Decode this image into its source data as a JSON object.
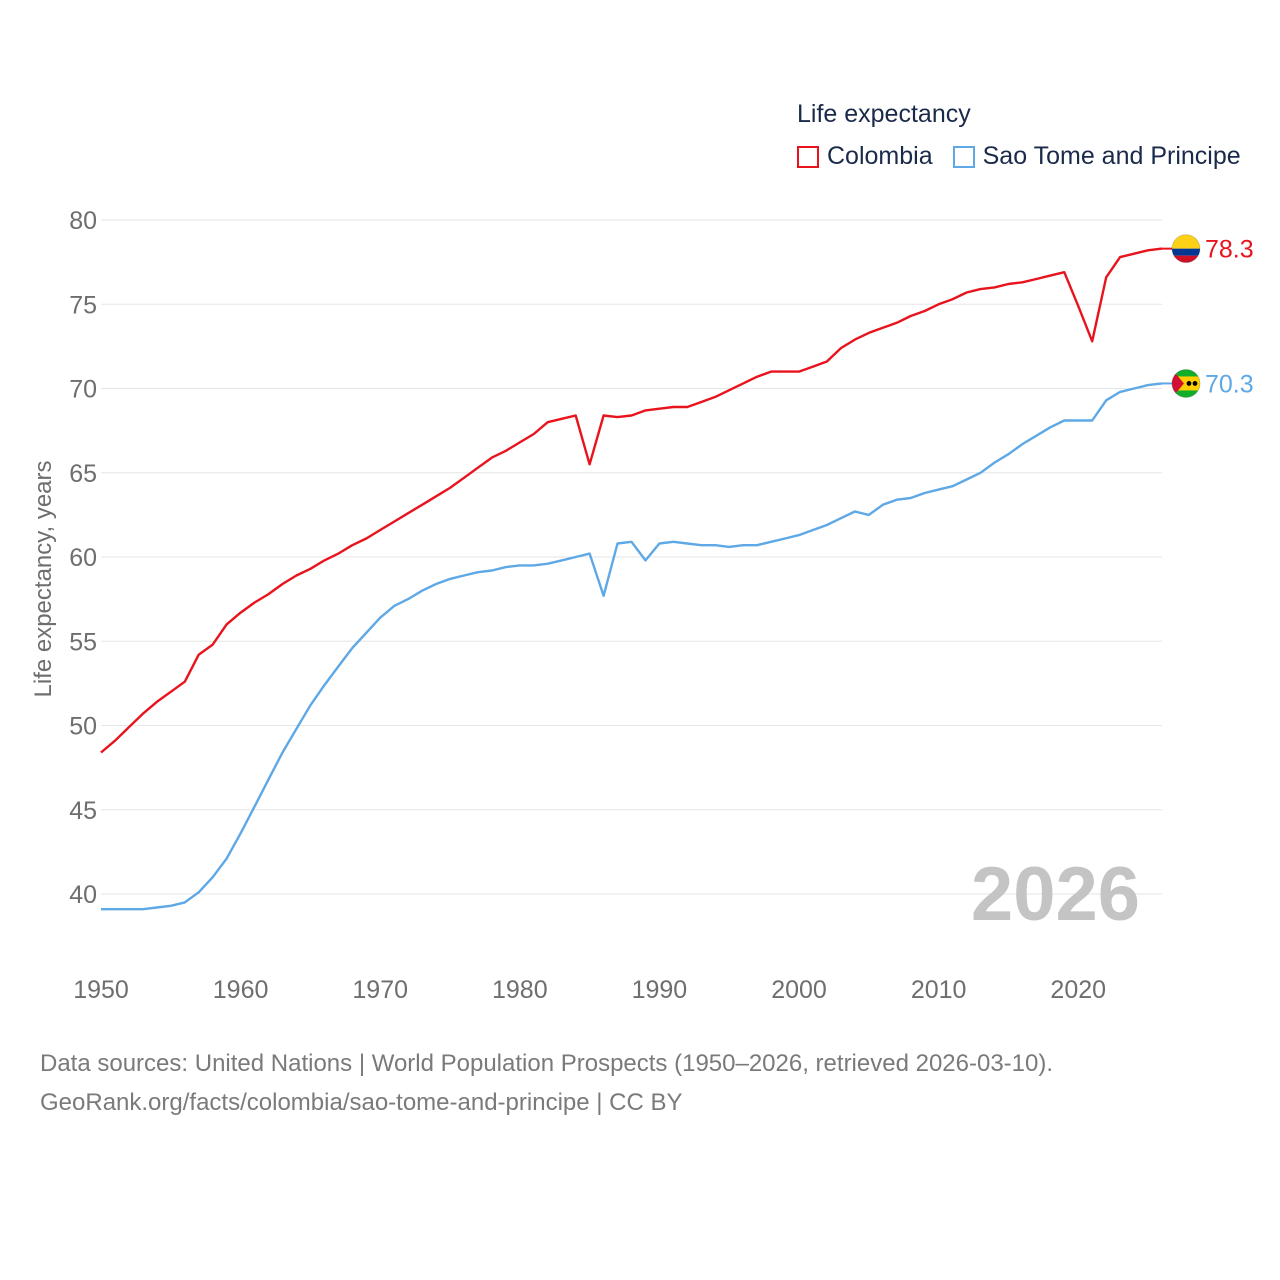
{
  "legend": {
    "title": "Life expectancy"
  },
  "colors": {
    "colombia": "#e8131c",
    "sao_tome": "#5ea8e6",
    "grid": "#e6e6e6",
    "tick_text": "#6e6e6e",
    "year_watermark": "#c4c4c4"
  },
  "year_label": "2026",
  "source": {
    "line1": "Data sources: United Nations | World Population Prospects (1950–2026, retrieved 2026-03-10).",
    "line2": "GeoRank.org/facts/colombia/sao-tome-and-principe | CC BY"
  },
  "chart_data": {
    "type": "line",
    "title": "Life expectancy",
    "xlabel": "",
    "ylabel": "Life expectancy, years",
    "xlim": [
      1950,
      2026
    ],
    "ylim": [
      37,
      80
    ],
    "x_ticks": [
      1950,
      1960,
      1970,
      1980,
      1990,
      2000,
      2010,
      2020
    ],
    "y_ticks": [
      40,
      45,
      50,
      55,
      60,
      65,
      70,
      75,
      80
    ],
    "grid": true,
    "legend_position": "top-right",
    "series": [
      {
        "key": "colombia",
        "name": "Colombia",
        "end_label": "78.3",
        "flag": "colombia-flag",
        "points": [
          [
            1950,
            48.4
          ],
          [
            1951,
            49.1
          ],
          [
            1952,
            49.9
          ],
          [
            1953,
            50.7
          ],
          [
            1954,
            51.4
          ],
          [
            1955,
            52.0
          ],
          [
            1956,
            52.6
          ],
          [
            1957,
            54.2
          ],
          [
            1958,
            54.8
          ],
          [
            1959,
            56.0
          ],
          [
            1960,
            56.7
          ],
          [
            1961,
            57.3
          ],
          [
            1962,
            57.8
          ],
          [
            1963,
            58.4
          ],
          [
            1964,
            58.9
          ],
          [
            1965,
            59.3
          ],
          [
            1966,
            59.8
          ],
          [
            1967,
            60.2
          ],
          [
            1968,
            60.7
          ],
          [
            1969,
            61.1
          ],
          [
            1970,
            61.6
          ],
          [
            1971,
            62.1
          ],
          [
            1972,
            62.6
          ],
          [
            1973,
            63.1
          ],
          [
            1974,
            63.6
          ],
          [
            1975,
            64.1
          ],
          [
            1976,
            64.7
          ],
          [
            1977,
            65.3
          ],
          [
            1978,
            65.9
          ],
          [
            1979,
            66.3
          ],
          [
            1980,
            66.8
          ],
          [
            1981,
            67.3
          ],
          [
            1982,
            68.0
          ],
          [
            1983,
            68.2
          ],
          [
            1984,
            68.4
          ],
          [
            1985,
            65.5
          ],
          [
            1986,
            68.4
          ],
          [
            1987,
            68.3
          ],
          [
            1988,
            68.4
          ],
          [
            1989,
            68.7
          ],
          [
            1990,
            68.8
          ],
          [
            1991,
            68.9
          ],
          [
            1992,
            68.9
          ],
          [
            1993,
            69.2
          ],
          [
            1994,
            69.5
          ],
          [
            1995,
            69.9
          ],
          [
            1996,
            70.3
          ],
          [
            1997,
            70.7
          ],
          [
            1998,
            71.0
          ],
          [
            1999,
            71.0
          ],
          [
            2000,
            71.0
          ],
          [
            2001,
            71.3
          ],
          [
            2002,
            71.6
          ],
          [
            2003,
            72.4
          ],
          [
            2004,
            72.9
          ],
          [
            2005,
            73.3
          ],
          [
            2006,
            73.6
          ],
          [
            2007,
            73.9
          ],
          [
            2008,
            74.3
          ],
          [
            2009,
            74.6
          ],
          [
            2010,
            75.0
          ],
          [
            2011,
            75.3
          ],
          [
            2012,
            75.7
          ],
          [
            2013,
            75.9
          ],
          [
            2014,
            76.0
          ],
          [
            2015,
            76.2
          ],
          [
            2016,
            76.3
          ],
          [
            2017,
            76.5
          ],
          [
            2018,
            76.7
          ],
          [
            2019,
            76.9
          ],
          [
            2020,
            74.9
          ],
          [
            2021,
            72.8
          ],
          [
            2022,
            76.6
          ],
          [
            2023,
            77.8
          ],
          [
            2024,
            78.0
          ],
          [
            2025,
            78.2
          ],
          [
            2026,
            78.3
          ]
        ]
      },
      {
        "key": "sao_tome",
        "name": "Sao Tome and Principe",
        "end_label": "70.3",
        "flag": "sao-tome-flag",
        "points": [
          [
            1950,
            39.1
          ],
          [
            1951,
            39.1
          ],
          [
            1952,
            39.1
          ],
          [
            1953,
            39.1
          ],
          [
            1954,
            39.2
          ],
          [
            1955,
            39.3
          ],
          [
            1956,
            39.5
          ],
          [
            1957,
            40.1
          ],
          [
            1958,
            41.0
          ],
          [
            1959,
            42.1
          ],
          [
            1960,
            43.6
          ],
          [
            1961,
            45.2
          ],
          [
            1962,
            46.8
          ],
          [
            1963,
            48.4
          ],
          [
            1964,
            49.8
          ],
          [
            1965,
            51.2
          ],
          [
            1966,
            52.4
          ],
          [
            1967,
            53.5
          ],
          [
            1968,
            54.6
          ],
          [
            1969,
            55.5
          ],
          [
            1970,
            56.4
          ],
          [
            1971,
            57.1
          ],
          [
            1972,
            57.5
          ],
          [
            1973,
            58.0
          ],
          [
            1974,
            58.4
          ],
          [
            1975,
            58.7
          ],
          [
            1976,
            58.9
          ],
          [
            1977,
            59.1
          ],
          [
            1978,
            59.2
          ],
          [
            1979,
            59.4
          ],
          [
            1980,
            59.5
          ],
          [
            1981,
            59.5
          ],
          [
            1982,
            59.6
          ],
          [
            1983,
            59.8
          ],
          [
            1984,
            60.0
          ],
          [
            1985,
            60.2
          ],
          [
            1986,
            57.7
          ],
          [
            1987,
            60.8
          ],
          [
            1988,
            60.9
          ],
          [
            1989,
            59.8
          ],
          [
            1990,
            60.8
          ],
          [
            1991,
            60.9
          ],
          [
            1992,
            60.8
          ],
          [
            1993,
            60.7
          ],
          [
            1994,
            60.7
          ],
          [
            1995,
            60.6
          ],
          [
            1996,
            60.7
          ],
          [
            1997,
            60.7
          ],
          [
            1998,
            60.9
          ],
          [
            1999,
            61.1
          ],
          [
            2000,
            61.3
          ],
          [
            2001,
            61.6
          ],
          [
            2002,
            61.9
          ],
          [
            2003,
            62.3
          ],
          [
            2004,
            62.7
          ],
          [
            2005,
            62.5
          ],
          [
            2006,
            63.1
          ],
          [
            2007,
            63.4
          ],
          [
            2008,
            63.5
          ],
          [
            2009,
            63.8
          ],
          [
            2010,
            64.0
          ],
          [
            2011,
            64.2
          ],
          [
            2012,
            64.6
          ],
          [
            2013,
            65.0
          ],
          [
            2014,
            65.6
          ],
          [
            2015,
            66.1
          ],
          [
            2016,
            66.7
          ],
          [
            2017,
            67.2
          ],
          [
            2018,
            67.7
          ],
          [
            2019,
            68.1
          ],
          [
            2020,
            68.1
          ],
          [
            2021,
            68.1
          ],
          [
            2022,
            69.3
          ],
          [
            2023,
            69.8
          ],
          [
            2024,
            70.0
          ],
          [
            2025,
            70.2
          ],
          [
            2026,
            70.3
          ]
        ]
      }
    ]
  }
}
